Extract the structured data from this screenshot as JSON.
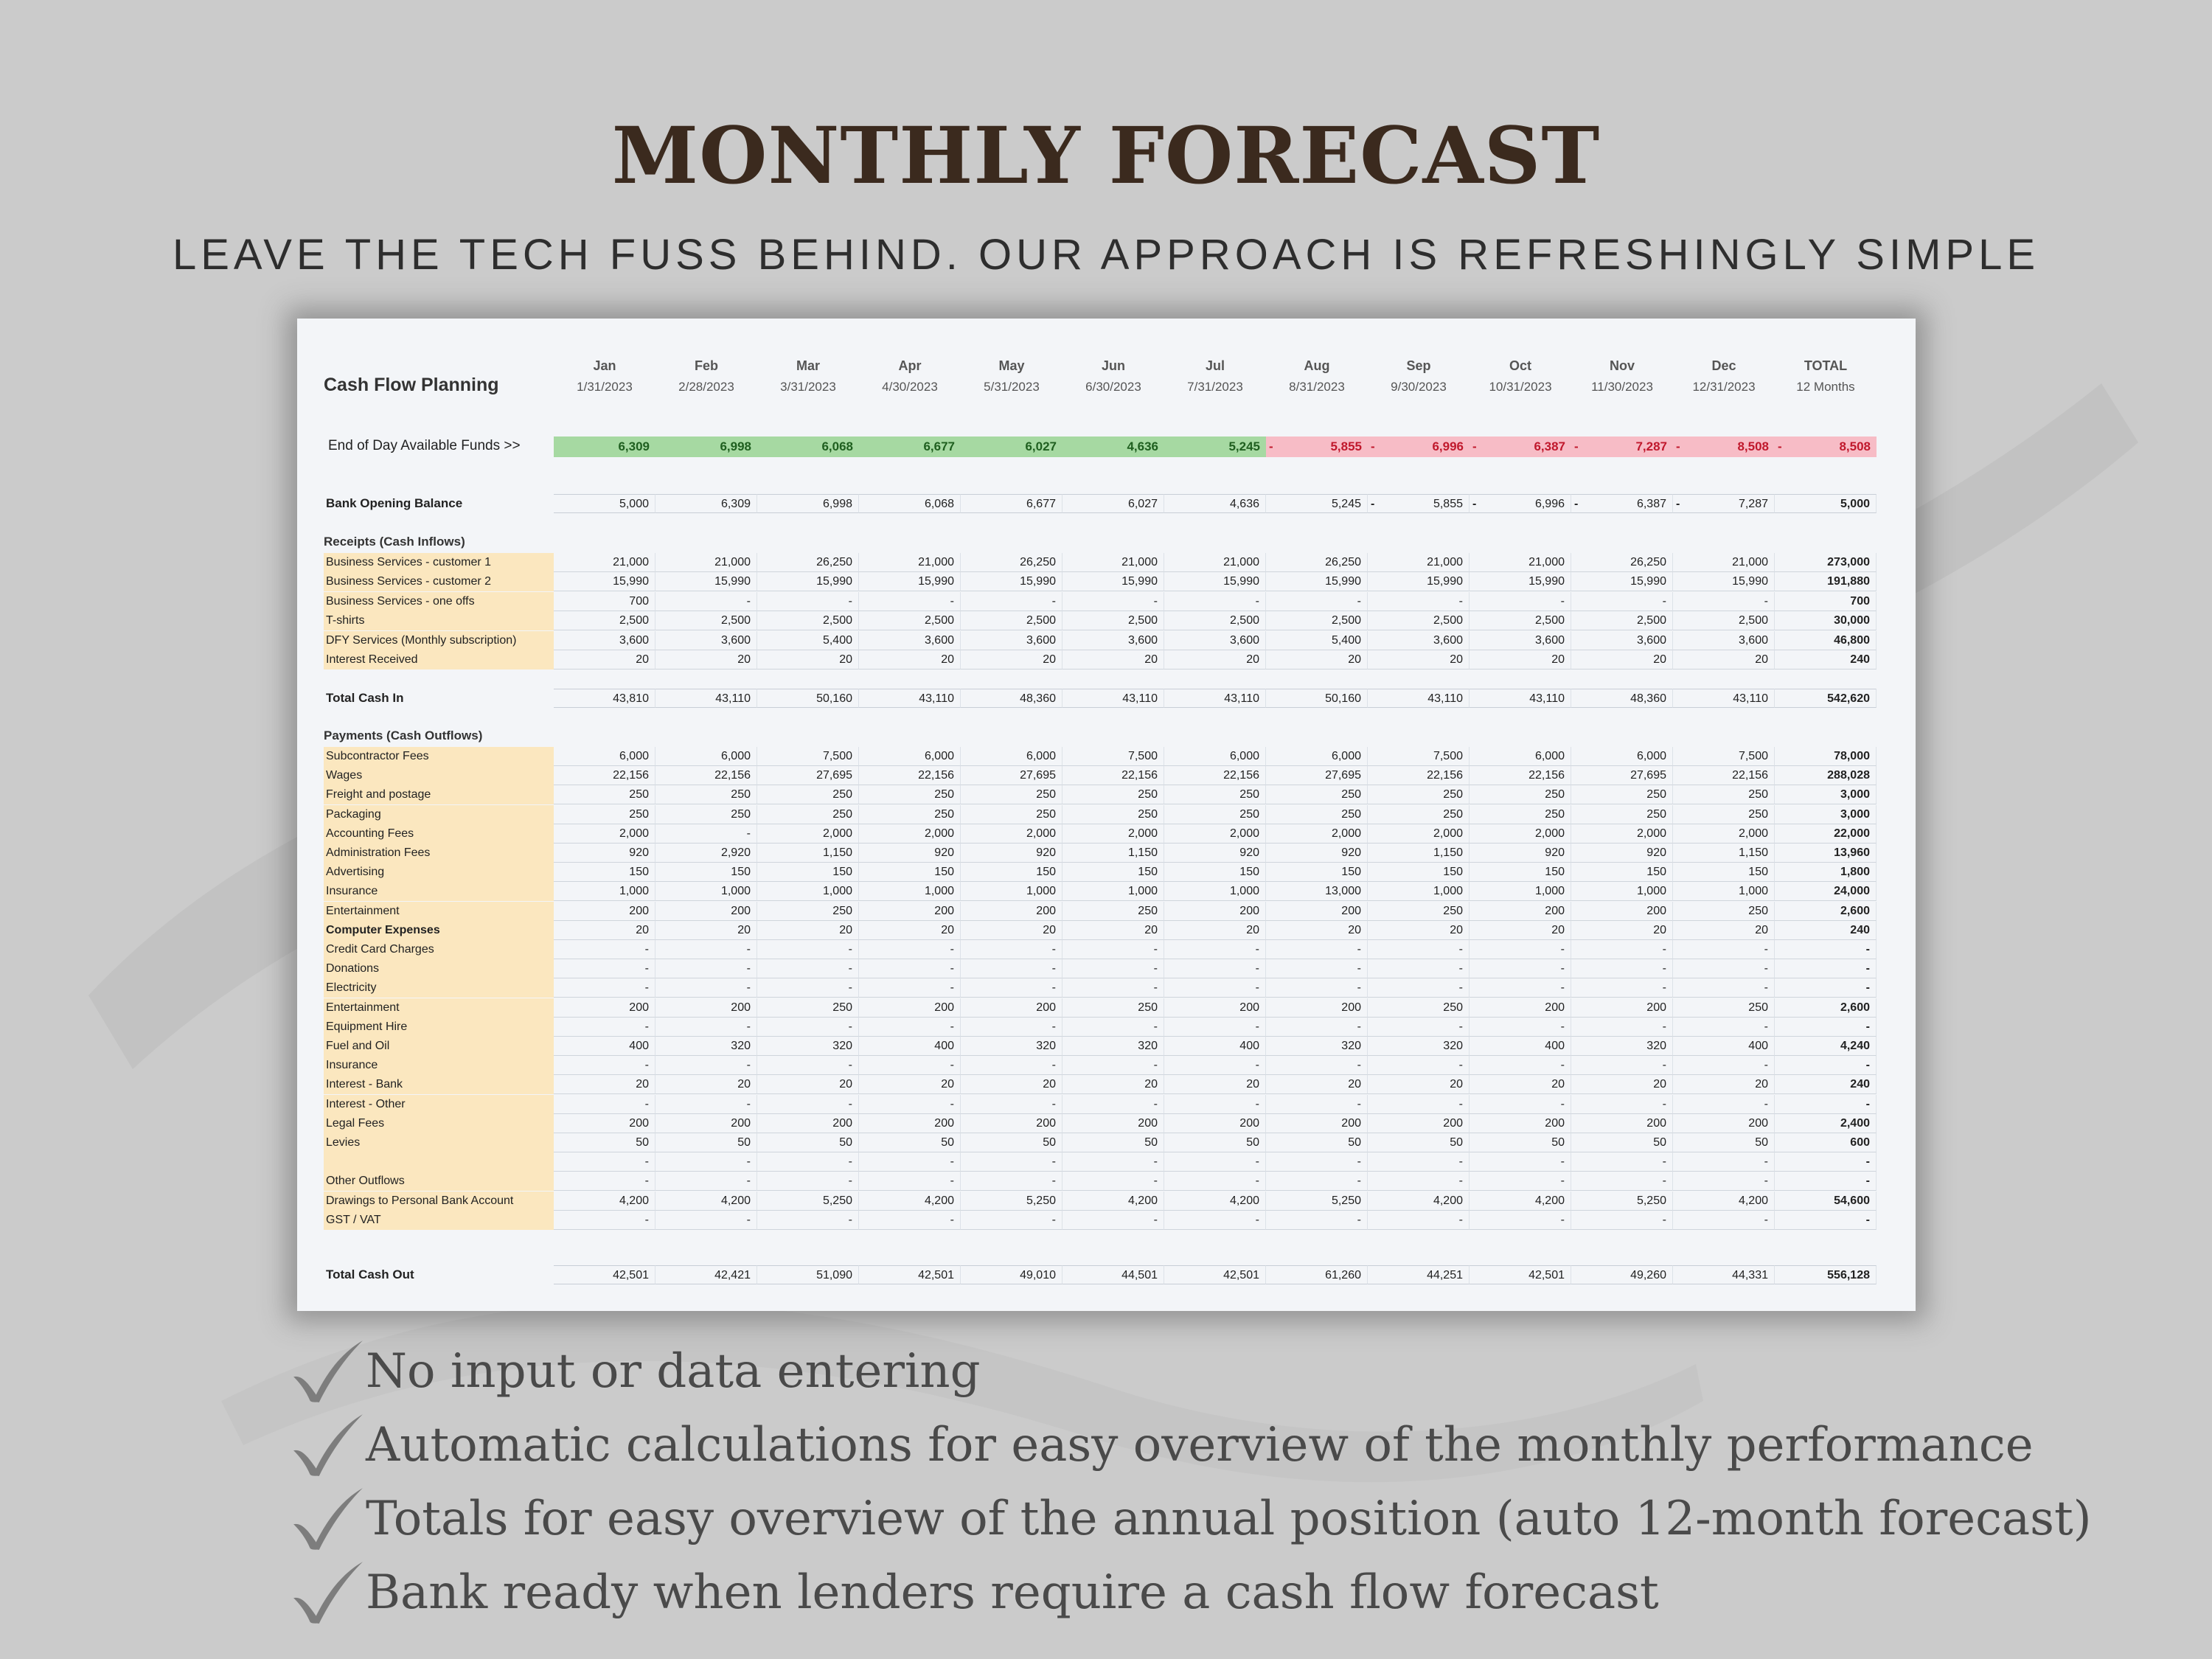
{
  "page": {
    "title": "MONTHLY FORECAST",
    "subtitle": "LEAVE THE TECH FUSS BEHIND. OUR APPROACH IS REFRESHINGLY SIMPLE"
  },
  "sheet": {
    "title": "Cash Flow Planning",
    "months": [
      {
        "name": "Jan",
        "date": "1/31/2023"
      },
      {
        "name": "Feb",
        "date": "2/28/2023"
      },
      {
        "name": "Mar",
        "date": "3/31/2023"
      },
      {
        "name": "Apr",
        "date": "4/30/2023"
      },
      {
        "name": "May",
        "date": "5/31/2023"
      },
      {
        "name": "Jun",
        "date": "6/30/2023"
      },
      {
        "name": "Jul",
        "date": "7/31/2023"
      },
      {
        "name": "Aug",
        "date": "8/31/2023"
      },
      {
        "name": "Sep",
        "date": "9/30/2023"
      },
      {
        "name": "Oct",
        "date": "10/31/2023"
      },
      {
        "name": "Nov",
        "date": "11/30/2023"
      },
      {
        "name": "Dec",
        "date": "12/31/2023"
      },
      {
        "name": "TOTAL",
        "date": "12 Months"
      }
    ],
    "available_funds": {
      "label": "End of Day Available Funds >>",
      "values": [
        "6,309",
        "6,998",
        "6,068",
        "6,677",
        "6,027",
        "4,636",
        "5,245",
        "5,855",
        "6,996",
        "6,387",
        "7,287",
        "8,508",
        "8,508"
      ],
      "negative": [
        false,
        false,
        false,
        false,
        false,
        false,
        false,
        true,
        true,
        true,
        true,
        true,
        true
      ]
    },
    "opening_balance": {
      "label": "Bank Opening Balance",
      "values": [
        "5,000",
        "6,309",
        "6,998",
        "6,068",
        "6,677",
        "6,027",
        "4,636",
        "5,245",
        "5,855",
        "6,996",
        "6,387",
        "7,287",
        "5,000"
      ],
      "negative": [
        false,
        false,
        false,
        false,
        false,
        false,
        false,
        false,
        true,
        true,
        true,
        true,
        false
      ]
    },
    "receipts": {
      "header": "Receipts (Cash Inflows)",
      "rows": [
        {
          "label": "Business Services - customer 1",
          "values": [
            "21,000",
            "21,000",
            "26,250",
            "21,000",
            "26,250",
            "21,000",
            "21,000",
            "26,250",
            "21,000",
            "21,000",
            "26,250",
            "21,000",
            "273,000"
          ]
        },
        {
          "label": "Business Services - customer 2",
          "values": [
            "15,990",
            "15,990",
            "15,990",
            "15,990",
            "15,990",
            "15,990",
            "15,990",
            "15,990",
            "15,990",
            "15,990",
            "15,990",
            "15,990",
            "191,880"
          ]
        },
        {
          "label": "Business Services - one offs",
          "values": [
            "700",
            "-",
            "-",
            "-",
            "-",
            "-",
            "-",
            "-",
            "-",
            "-",
            "-",
            "-",
            "700"
          ]
        },
        {
          "label": "T-shirts",
          "values": [
            "2,500",
            "2,500",
            "2,500",
            "2,500",
            "2,500",
            "2,500",
            "2,500",
            "2,500",
            "2,500",
            "2,500",
            "2,500",
            "2,500",
            "30,000"
          ]
        },
        {
          "label": "DFY Services (Monthly subscription)",
          "values": [
            "3,600",
            "3,600",
            "5,400",
            "3,600",
            "3,600",
            "3,600",
            "3,600",
            "5,400",
            "3,600",
            "3,600",
            "3,600",
            "3,600",
            "46,800"
          ]
        },
        {
          "label": "Interest Received",
          "values": [
            "20",
            "20",
            "20",
            "20",
            "20",
            "20",
            "20",
            "20",
            "20",
            "20",
            "20",
            "20",
            "240"
          ]
        }
      ],
      "total": {
        "label": "Total Cash In",
        "values": [
          "43,810",
          "43,110",
          "50,160",
          "43,110",
          "48,360",
          "43,110",
          "43,110",
          "50,160",
          "43,110",
          "43,110",
          "48,360",
          "43,110",
          "542,620"
        ]
      }
    },
    "payments": {
      "header": "Payments (Cash Outflows)",
      "rows": [
        {
          "label": "Subcontractor Fees",
          "values": [
            "6,000",
            "6,000",
            "7,500",
            "6,000",
            "6,000",
            "7,500",
            "6,000",
            "6,000",
            "7,500",
            "6,000",
            "6,000",
            "7,500",
            "78,000"
          ]
        },
        {
          "label": "Wages",
          "values": [
            "22,156",
            "22,156",
            "27,695",
            "22,156",
            "27,695",
            "22,156",
            "22,156",
            "27,695",
            "22,156",
            "22,156",
            "27,695",
            "22,156",
            "288,028"
          ]
        },
        {
          "label": "Freight and postage",
          "values": [
            "250",
            "250",
            "250",
            "250",
            "250",
            "250",
            "250",
            "250",
            "250",
            "250",
            "250",
            "250",
            "3,000"
          ]
        },
        {
          "label": "Packaging",
          "values": [
            "250",
            "250",
            "250",
            "250",
            "250",
            "250",
            "250",
            "250",
            "250",
            "250",
            "250",
            "250",
            "3,000"
          ]
        },
        {
          "label": "Accounting Fees",
          "values": [
            "2,000",
            "-",
            "2,000",
            "2,000",
            "2,000",
            "2,000",
            "2,000",
            "2,000",
            "2,000",
            "2,000",
            "2,000",
            "2,000",
            "22,000"
          ]
        },
        {
          "label": "Administration Fees",
          "values": [
            "920",
            "2,920",
            "1,150",
            "920",
            "920",
            "1,150",
            "920",
            "920",
            "1,150",
            "920",
            "920",
            "1,150",
            "13,960"
          ]
        },
        {
          "label": "Advertising",
          "values": [
            "150",
            "150",
            "150",
            "150",
            "150",
            "150",
            "150",
            "150",
            "150",
            "150",
            "150",
            "150",
            "1,800"
          ]
        },
        {
          "label": "Insurance",
          "values": [
            "1,000",
            "1,000",
            "1,000",
            "1,000",
            "1,000",
            "1,000",
            "1,000",
            "13,000",
            "1,000",
            "1,000",
            "1,000",
            "1,000",
            "24,000"
          ]
        },
        {
          "label": "Entertainment",
          "values": [
            "200",
            "200",
            "250",
            "200",
            "200",
            "250",
            "200",
            "200",
            "250",
            "200",
            "200",
            "250",
            "2,600"
          ]
        },
        {
          "label": "Computer Expenses",
          "bold": true,
          "values": [
            "20",
            "20",
            "20",
            "20",
            "20",
            "20",
            "20",
            "20",
            "20",
            "20",
            "20",
            "20",
            "240"
          ]
        },
        {
          "label": "Credit Card Charges",
          "values": [
            "-",
            "-",
            "-",
            "-",
            "-",
            "-",
            "-",
            "-",
            "-",
            "-",
            "-",
            "-",
            "-"
          ]
        },
        {
          "label": "Donations",
          "values": [
            "-",
            "-",
            "-",
            "-",
            "-",
            "-",
            "-",
            "-",
            "-",
            "-",
            "-",
            "-",
            "-"
          ]
        },
        {
          "label": "Electricity",
          "values": [
            "-",
            "-",
            "-",
            "-",
            "-",
            "-",
            "-",
            "-",
            "-",
            "-",
            "-",
            "-",
            "-"
          ]
        },
        {
          "label": "Entertainment",
          "values": [
            "200",
            "200",
            "250",
            "200",
            "200",
            "250",
            "200",
            "200",
            "250",
            "200",
            "200",
            "250",
            "2,600"
          ]
        },
        {
          "label": "Equipment Hire",
          "values": [
            "-",
            "-",
            "-",
            "-",
            "-",
            "-",
            "-",
            "-",
            "-",
            "-",
            "-",
            "-",
            "-"
          ]
        },
        {
          "label": "Fuel and Oil",
          "values": [
            "400",
            "320",
            "320",
            "400",
            "320",
            "320",
            "400",
            "320",
            "320",
            "400",
            "320",
            "400",
            "4,240"
          ]
        },
        {
          "label": "Insurance",
          "values": [
            "-",
            "-",
            "-",
            "-",
            "-",
            "-",
            "-",
            "-",
            "-",
            "-",
            "-",
            "-",
            "-"
          ]
        },
        {
          "label": "Interest - Bank",
          "values": [
            "20",
            "20",
            "20",
            "20",
            "20",
            "20",
            "20",
            "20",
            "20",
            "20",
            "20",
            "20",
            "240"
          ]
        },
        {
          "label": "Interest - Other",
          "values": [
            "-",
            "-",
            "-",
            "-",
            "-",
            "-",
            "-",
            "-",
            "-",
            "-",
            "-",
            "-",
            "-"
          ]
        },
        {
          "label": "Legal Fees",
          "values": [
            "200",
            "200",
            "200",
            "200",
            "200",
            "200",
            "200",
            "200",
            "200",
            "200",
            "200",
            "200",
            "2,400"
          ]
        },
        {
          "label": "Levies",
          "values": [
            "50",
            "50",
            "50",
            "50",
            "50",
            "50",
            "50",
            "50",
            "50",
            "50",
            "50",
            "50",
            "600"
          ]
        },
        {
          "label": "",
          "values": [
            "-",
            "-",
            "-",
            "-",
            "-",
            "-",
            "-",
            "-",
            "-",
            "-",
            "-",
            "-",
            "-"
          ]
        },
        {
          "label": "Other Outflows",
          "values": [
            "-",
            "-",
            "-",
            "-",
            "-",
            "-",
            "-",
            "-",
            "-",
            "-",
            "-",
            "-",
            "-"
          ]
        },
        {
          "label": "Drawings to Personal Bank Account",
          "values": [
            "4,200",
            "4,200",
            "5,250",
            "4,200",
            "5,250",
            "4,200",
            "4,200",
            "5,250",
            "4,200",
            "4,200",
            "5,250",
            "4,200",
            "54,600"
          ]
        },
        {
          "label": "GST / VAT",
          "values": [
            "-",
            "-",
            "-",
            "-",
            "-",
            "-",
            "-",
            "-",
            "-",
            "-",
            "-",
            "-",
            "-"
          ]
        }
      ],
      "total": {
        "label": "Total Cash Out",
        "values": [
          "42,501",
          "42,421",
          "51,090",
          "42,501",
          "49,010",
          "44,501",
          "42,501",
          "61,260",
          "44,251",
          "42,501",
          "49,260",
          "44,331",
          "556,128"
        ]
      }
    }
  },
  "features": [
    "No input or data entering",
    "Automatic calculations for easy overview of the monthly performance",
    "Totals for easy overview of the annual position (auto 12-month forecast)",
    "Bank ready when lenders require a cash flow forecast"
  ],
  "colors": {
    "background": "#cbcbcb",
    "title": "#3b2a1e",
    "positive_fill": "#a6d9a2",
    "negative_fill": "#f7bcc6",
    "negative_text": "#c0182c",
    "input_label_fill": "#fbe7bf"
  },
  "icons": {
    "feature_bullet": "checkmark-icon"
  }
}
